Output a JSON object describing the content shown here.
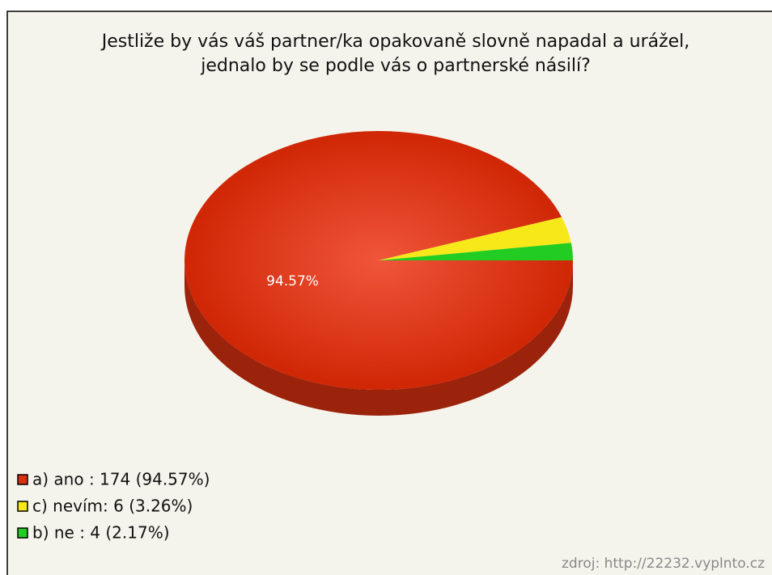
{
  "chart_data": {
    "type": "pie",
    "title": [
      "Jestliže by vás váš partner/ka opakovaně slovně napadal a urážel,",
      "jednalo by se podle vás o partnerské násilí?"
    ],
    "categories": [
      "a) ano : 174 (94.57%)",
      "c) nevím: 6 (3.26%)",
      "b) ne : 4 (2.17%)"
    ],
    "values": [
      94.57,
      3.26,
      2.17
    ],
    "value_labels": [
      "94.57%",
      null,
      null
    ],
    "colors": [
      "#d9300f",
      "#f7e81a",
      "#22cc22"
    ],
    "source": "zdroj: http://22232.vyplnto.cz"
  }
}
